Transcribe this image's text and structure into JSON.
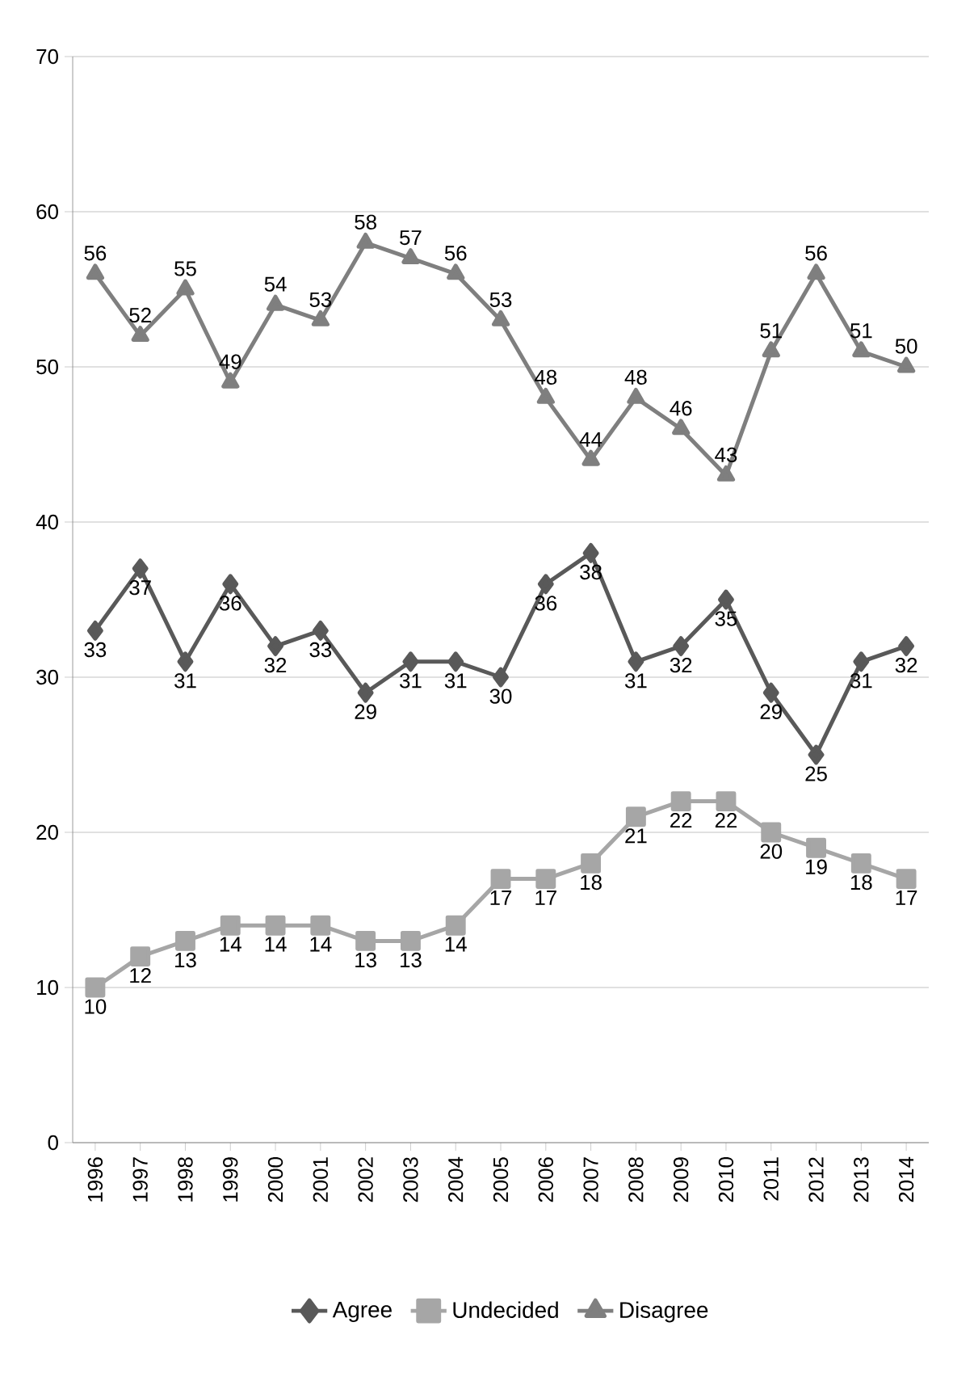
{
  "chart_data": {
    "type": "line",
    "categories": [
      "1996",
      "1997",
      "1998",
      "1999",
      "2000",
      "2001",
      "2002",
      "2003",
      "2004",
      "2005",
      "2006",
      "2007",
      "2008",
      "2009",
      "2010",
      "2011",
      "2012",
      "2013",
      "2014"
    ],
    "series": [
      {
        "name": "Agree",
        "color": "#595959",
        "marker": "diamond",
        "values": [
          33,
          37,
          31,
          36,
          32,
          33,
          29,
          31,
          31,
          30,
          36,
          38,
          31,
          32,
          35,
          29,
          25,
          31,
          32
        ]
      },
      {
        "name": "Undecided",
        "color": "#a6a6a6",
        "marker": "square",
        "values": [
          10,
          12,
          13,
          14,
          14,
          14,
          13,
          13,
          14,
          17,
          17,
          18,
          21,
          22,
          22,
          20,
          19,
          18,
          17
        ]
      },
      {
        "name": "Disagree",
        "color": "#7f7f7f",
        "marker": "triangle",
        "values": [
          56,
          52,
          55,
          49,
          54,
          53,
          58,
          57,
          56,
          53,
          48,
          44,
          48,
          46,
          43,
          51,
          56,
          51,
          50
        ]
      }
    ],
    "ylim": [
      0,
      70
    ],
    "yticks": [
      0,
      10,
      20,
      30,
      40,
      50,
      60,
      70
    ],
    "grid": "y",
    "legend": "bottom",
    "data_labels": true
  }
}
